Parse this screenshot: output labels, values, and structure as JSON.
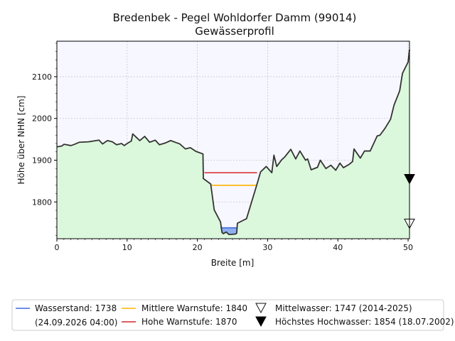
{
  "chart_data": {
    "type": "area",
    "title": "Bredenbek - Pegel Wohldorfer Damm (99014)",
    "subtitle": "Gewässerprofil",
    "xlabel": "Breite [m]",
    "ylabel": "Höhe über NHN [cm]",
    "xlim": [
      0,
      50.2
    ],
    "ylim": [
      1712,
      2185
    ],
    "xticks": [
      0,
      10,
      20,
      30,
      40,
      50
    ],
    "yticks": [
      1800,
      1900,
      2000,
      2100
    ],
    "grid": true,
    "profile": {
      "x": [
        0,
        0.7,
        1.0,
        1.4,
        2.0,
        2.5,
        3.2,
        4.5,
        5.2,
        6.0,
        6.5,
        7.2,
        7.9,
        8.5,
        9.2,
        9.6,
        10.0,
        10.6,
        10.8,
        11.3,
        11.8,
        12.5,
        13.2,
        14.0,
        14.6,
        15.4,
        16.2,
        17.0,
        17.5,
        18.3,
        19.0,
        19.8,
        20.8,
        20.85,
        21.9,
        22.4,
        23.3,
        23.5,
        23.7,
        24.1,
        24.5,
        25.4,
        25.6,
        25.7,
        27.0,
        28.5,
        29.0,
        29.8,
        30.6,
        30.9,
        31.3,
        32.0,
        32.4,
        33.3,
        34.0,
        34.6,
        35.4,
        35.7,
        36.2,
        37.1,
        37.5,
        38.3,
        39.0,
        39.7,
        40.3,
        40.8,
        41.6,
        42.1,
        42.3,
        43.2,
        43.8,
        44.6,
        45.6,
        46.0,
        46.7,
        47.5,
        48.0,
        48.8,
        49.2,
        50.0,
        50.2
      ],
      "y": [
        1932,
        1934,
        1938,
        1937,
        1935,
        1938,
        1943,
        1944,
        1946,
        1948,
        1939,
        1947,
        1944,
        1937,
        1940,
        1935,
        1940,
        1946,
        1963,
        1955,
        1947,
        1957,
        1943,
        1948,
        1937,
        1941,
        1947,
        1942,
        1939,
        1927,
        1930,
        1921,
        1915,
        1856,
        1843,
        1781,
        1752,
        1727,
        1724,
        1728,
        1722,
        1723,
        1725,
        1749,
        1760,
        1843,
        1872,
        1885,
        1870,
        1912,
        1885,
        1901,
        1907,
        1926,
        1903,
        1922,
        1900,
        1903,
        1877,
        1883,
        1900,
        1880,
        1888,
        1876,
        1893,
        1882,
        1890,
        1897,
        1927,
        1905,
        1922,
        1922,
        1958,
        1960,
        1976,
        1998,
        2032,
        2066,
        2108,
        2135,
        2165
      ]
    },
    "series": [
      {
        "name": "Wasserstand: 1738",
        "value": 1738,
        "x_range": [
          23.3,
          25.6
        ],
        "color": "#4169e1"
      },
      {
        "name": "Mittlere Warnstufe: 1840",
        "value": 1840,
        "x_range": [
          22.0,
          28.5
        ],
        "color": "#ffb300"
      },
      {
        "name": "Hohe Warnstufe: 1870",
        "value": 1870,
        "x_range": [
          21.0,
          28.5
        ],
        "color": "#d62728"
      }
    ],
    "markers": [
      {
        "name": "Mittelwasser: 1747 (2014-2025)",
        "value": 1747,
        "x": 50.2,
        "style": "open-triangle-down"
      },
      {
        "name": "Höchstes Hochwasser: 1854 (18.07.2002)",
        "value": 1854,
        "x": 50.2,
        "style": "filled-triangle-down"
      }
    ],
    "legend": {
      "placement": "bottom",
      "wasserstand_sub": "(24.09.2026 04:00)"
    },
    "colors": {
      "ground": "#dcf8dc",
      "air": "#f7f7ff",
      "water_fill": "#8fb0f0",
      "profile_line": "#333333"
    }
  }
}
